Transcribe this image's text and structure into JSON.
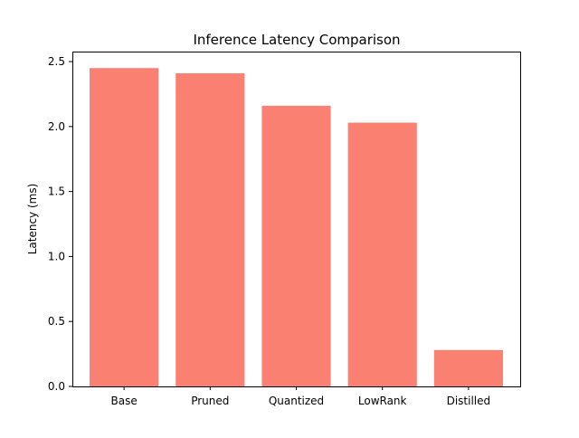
{
  "chart_data": {
    "type": "bar",
    "title": "Inference Latency Comparison",
    "xlabel": "",
    "ylabel": "Latency (ms)",
    "categories": [
      "Base",
      "Pruned",
      "Quantized",
      "LowRank",
      "Distilled"
    ],
    "values": [
      2.45,
      2.41,
      2.16,
      2.03,
      0.28
    ],
    "ylim": [
      0,
      2.57
    ],
    "yticks": [
      0.0,
      0.5,
      1.0,
      1.5,
      2.0,
      2.5
    ],
    "ytick_labels": [
      "0.0",
      "0.5",
      "1.0",
      "1.5",
      "2.0",
      "2.5"
    ],
    "bar_color": "#fa8072",
    "grid": false,
    "legend": "none"
  }
}
